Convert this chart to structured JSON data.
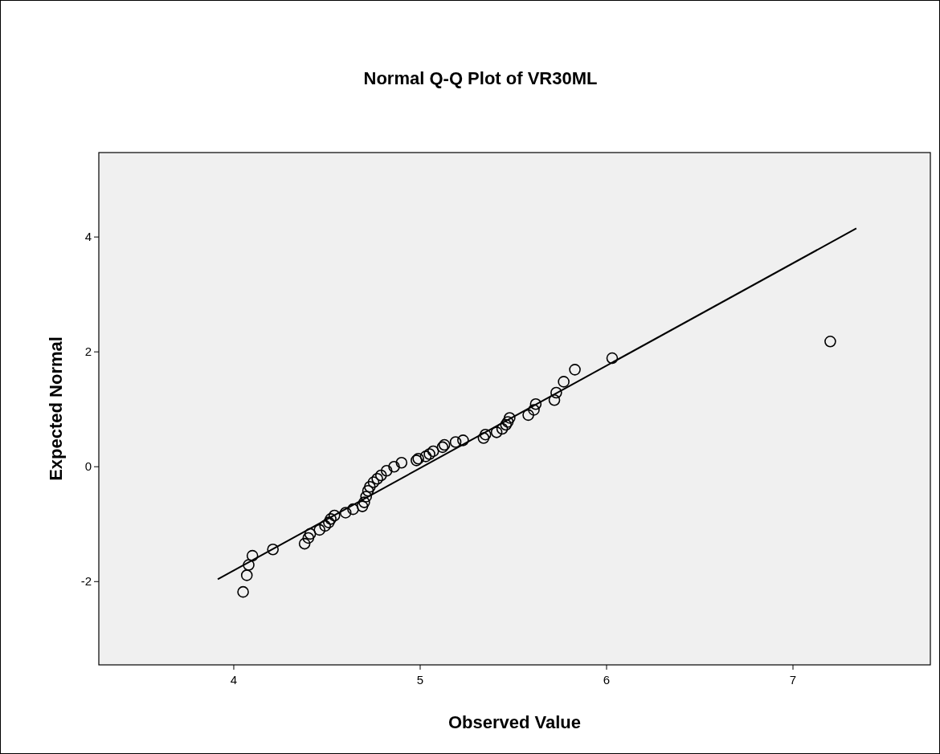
{
  "chart_data": {
    "type": "scatter",
    "title": "Normal Q-Q Plot of VR30ML",
    "xlabel": "Observed Value",
    "ylabel": "Expected Normal",
    "xlim": [
      3.276,
      7.737
    ],
    "ylim": [
      -3.45,
      5.47
    ],
    "xticks": [
      4,
      5,
      6,
      7
    ],
    "yticks": [
      -2,
      0,
      2,
      4
    ],
    "grid": false,
    "marker": "circle",
    "series": [
      {
        "type": "scatter",
        "color": "#000000",
        "x": [
          4.05,
          4.07,
          4.08,
          4.1,
          4.21,
          4.38,
          4.4,
          4.41,
          4.46,
          4.49,
          4.51,
          4.52,
          4.54,
          4.6,
          4.64,
          4.69,
          4.7,
          4.71,
          4.72,
          4.73,
          4.75,
          4.77,
          4.79,
          4.82,
          4.86,
          4.9,
          4.98,
          4.99,
          5.03,
          5.05,
          5.07,
          5.12,
          5.13,
          5.19,
          5.23,
          5.34,
          5.35,
          5.41,
          5.44,
          5.46,
          5.47,
          5.48,
          5.58,
          5.61,
          5.62,
          5.72,
          5.73,
          5.77,
          5.83,
          6.03,
          7.2
        ],
        "values": [
          -2.18,
          -1.89,
          -1.71,
          -1.55,
          -1.44,
          -1.34,
          -1.24,
          -1.17,
          -1.1,
          -1.03,
          -0.97,
          -0.91,
          -0.85,
          -0.8,
          -0.74,
          -0.69,
          -0.62,
          -0.52,
          -0.42,
          -0.35,
          -0.27,
          -0.21,
          -0.15,
          -0.07,
          0,
          0.07,
          0.11,
          0.14,
          0.18,
          0.22,
          0.27,
          0.34,
          0.38,
          0.43,
          0.46,
          0.5,
          0.56,
          0.6,
          0.66,
          0.73,
          0.78,
          0.85,
          0.9,
          0.99,
          1.09,
          1.16,
          1.29,
          1.48,
          1.69,
          1.89,
          2.18
        ]
      },
      {
        "type": "line",
        "color": "#000000",
        "x": [
          3.914,
          7.34
        ],
        "values": [
          -1.96,
          4.15
        ],
        "marker": "none"
      }
    ]
  }
}
